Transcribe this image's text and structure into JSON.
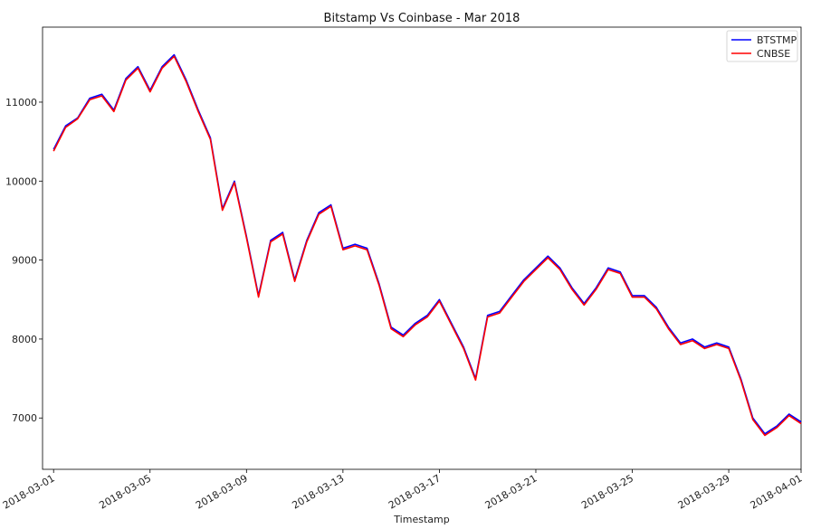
{
  "chart_data": {
    "type": "line",
    "title": "Bitstamp Vs Coinbase - Mar 2018",
    "xlabel": "Timestamp",
    "ylabel": "",
    "x_range": [
      "2018-02-28T13:00",
      "2018-04-01T00:00"
    ],
    "ylim": [
      6350,
      11950
    ],
    "x_ticks": [
      "2018-03-01",
      "2018-03-05",
      "2018-03-09",
      "2018-03-13",
      "2018-03-17",
      "2018-03-21",
      "2018-03-25",
      "2018-03-29",
      "2018-04-01"
    ],
    "y_ticks": [
      7000,
      8000,
      9000,
      10000,
      11000
    ],
    "legend_position": "top-right",
    "grid": false,
    "series": [
      {
        "name": "BTSTMP",
        "color": "#0000ff",
        "points": [
          [
            "2018-03-01T00:00",
            10400
          ],
          [
            "2018-03-01T12:00",
            10700
          ],
          [
            "2018-03-02T00:00",
            10800
          ],
          [
            "2018-03-02T12:00",
            11050
          ],
          [
            "2018-03-03T00:00",
            11100
          ],
          [
            "2018-03-03T12:00",
            10900
          ],
          [
            "2018-03-04T00:00",
            11300
          ],
          [
            "2018-03-04T12:00",
            11450
          ],
          [
            "2018-03-05T00:00",
            11150
          ],
          [
            "2018-03-05T12:00",
            11450
          ],
          [
            "2018-03-06T00:00",
            11600
          ],
          [
            "2018-03-06T12:00",
            11280
          ],
          [
            "2018-03-07T00:00",
            10900
          ],
          [
            "2018-03-07T12:00",
            10550
          ],
          [
            "2018-03-08T00:00",
            9650
          ],
          [
            "2018-03-08T12:00",
            10000
          ],
          [
            "2018-03-09T00:00",
            9300
          ],
          [
            "2018-03-09T12:00",
            8550
          ],
          [
            "2018-03-10T00:00",
            9250
          ],
          [
            "2018-03-10T12:00",
            9350
          ],
          [
            "2018-03-11T00:00",
            8750
          ],
          [
            "2018-03-11T12:00",
            9250
          ],
          [
            "2018-03-12T00:00",
            9600
          ],
          [
            "2018-03-12T12:00",
            9700
          ],
          [
            "2018-03-13T00:00",
            9150
          ],
          [
            "2018-03-13T12:00",
            9200
          ],
          [
            "2018-03-14T00:00",
            9150
          ],
          [
            "2018-03-14T12:00",
            8700
          ],
          [
            "2018-03-15T00:00",
            8150
          ],
          [
            "2018-03-15T12:00",
            8050
          ],
          [
            "2018-03-16T00:00",
            8200
          ],
          [
            "2018-03-16T12:00",
            8300
          ],
          [
            "2018-03-17T00:00",
            8500
          ],
          [
            "2018-03-17T12:00",
            8200
          ],
          [
            "2018-03-18T00:00",
            7900
          ],
          [
            "2018-03-18T12:00",
            7500
          ],
          [
            "2018-03-19T00:00",
            8300
          ],
          [
            "2018-03-19T12:00",
            8350
          ],
          [
            "2018-03-20T00:00",
            8550
          ],
          [
            "2018-03-20T12:00",
            8750
          ],
          [
            "2018-03-21T00:00",
            8900
          ],
          [
            "2018-03-21T12:00",
            9050
          ],
          [
            "2018-03-22T00:00",
            8900
          ],
          [
            "2018-03-22T12:00",
            8650
          ],
          [
            "2018-03-23T00:00",
            8450
          ],
          [
            "2018-03-23T12:00",
            8650
          ],
          [
            "2018-03-24T00:00",
            8900
          ],
          [
            "2018-03-24T12:00",
            8850
          ],
          [
            "2018-03-25T00:00",
            8550
          ],
          [
            "2018-03-25T12:00",
            8550
          ],
          [
            "2018-03-26T00:00",
            8400
          ],
          [
            "2018-03-26T12:00",
            8150
          ],
          [
            "2018-03-27T00:00",
            7950
          ],
          [
            "2018-03-27T12:00",
            8000
          ],
          [
            "2018-03-28T00:00",
            7900
          ],
          [
            "2018-03-28T12:00",
            7950
          ],
          [
            "2018-03-29T00:00",
            7900
          ],
          [
            "2018-03-29T12:00",
            7500
          ],
          [
            "2018-03-30T00:00",
            7000
          ],
          [
            "2018-03-30T12:00",
            6800
          ],
          [
            "2018-03-31T00:00",
            6900
          ],
          [
            "2018-03-31T12:00",
            7050
          ],
          [
            "2018-04-01T00:00",
            6950
          ]
        ]
      },
      {
        "name": "CNBSE",
        "color": "#ff0000",
        "points": [
          [
            "2018-03-01T00:00",
            10380
          ],
          [
            "2018-03-01T12:00",
            10680
          ],
          [
            "2018-03-02T00:00",
            10790
          ],
          [
            "2018-03-02T12:00",
            11030
          ],
          [
            "2018-03-03T00:00",
            11080
          ],
          [
            "2018-03-03T12:00",
            10880
          ],
          [
            "2018-03-04T00:00",
            11280
          ],
          [
            "2018-03-04T12:00",
            11430
          ],
          [
            "2018-03-05T00:00",
            11130
          ],
          [
            "2018-03-05T12:00",
            11430
          ],
          [
            "2018-03-06T00:00",
            11580
          ],
          [
            "2018-03-06T12:00",
            11260
          ],
          [
            "2018-03-07T00:00",
            10880
          ],
          [
            "2018-03-07T12:00",
            10530
          ],
          [
            "2018-03-08T00:00",
            9630
          ],
          [
            "2018-03-08T12:00",
            9980
          ],
          [
            "2018-03-09T00:00",
            9280
          ],
          [
            "2018-03-09T12:00",
            8530
          ],
          [
            "2018-03-10T00:00",
            9230
          ],
          [
            "2018-03-10T12:00",
            9330
          ],
          [
            "2018-03-11T00:00",
            8730
          ],
          [
            "2018-03-11T12:00",
            9230
          ],
          [
            "2018-03-12T00:00",
            9580
          ],
          [
            "2018-03-12T12:00",
            9680
          ],
          [
            "2018-03-13T00:00",
            9130
          ],
          [
            "2018-03-13T12:00",
            9180
          ],
          [
            "2018-03-14T00:00",
            9130
          ],
          [
            "2018-03-14T12:00",
            8680
          ],
          [
            "2018-03-15T00:00",
            8130
          ],
          [
            "2018-03-15T12:00",
            8030
          ],
          [
            "2018-03-16T00:00",
            8180
          ],
          [
            "2018-03-16T12:00",
            8280
          ],
          [
            "2018-03-17T00:00",
            8480
          ],
          [
            "2018-03-17T12:00",
            8180
          ],
          [
            "2018-03-18T00:00",
            7880
          ],
          [
            "2018-03-18T12:00",
            7480
          ],
          [
            "2018-03-19T00:00",
            8280
          ],
          [
            "2018-03-19T12:00",
            8330
          ],
          [
            "2018-03-20T00:00",
            8530
          ],
          [
            "2018-03-20T12:00",
            8730
          ],
          [
            "2018-03-21T00:00",
            8880
          ],
          [
            "2018-03-21T12:00",
            9030
          ],
          [
            "2018-03-22T00:00",
            8880
          ],
          [
            "2018-03-22T12:00",
            8630
          ],
          [
            "2018-03-23T00:00",
            8430
          ],
          [
            "2018-03-23T12:00",
            8630
          ],
          [
            "2018-03-24T00:00",
            8880
          ],
          [
            "2018-03-24T12:00",
            8830
          ],
          [
            "2018-03-25T00:00",
            8530
          ],
          [
            "2018-03-25T12:00",
            8530
          ],
          [
            "2018-03-26T00:00",
            8380
          ],
          [
            "2018-03-26T12:00",
            8130
          ],
          [
            "2018-03-27T00:00",
            7930
          ],
          [
            "2018-03-27T12:00",
            7980
          ],
          [
            "2018-03-28T00:00",
            7880
          ],
          [
            "2018-03-28T12:00",
            7930
          ],
          [
            "2018-03-29T00:00",
            7880
          ],
          [
            "2018-03-29T12:00",
            7480
          ],
          [
            "2018-03-30T00:00",
            6980
          ],
          [
            "2018-03-30T12:00",
            6780
          ],
          [
            "2018-03-31T00:00",
            6880
          ],
          [
            "2018-03-31T12:00",
            7030
          ],
          [
            "2018-04-01T00:00",
            6930
          ]
        ]
      }
    ]
  }
}
